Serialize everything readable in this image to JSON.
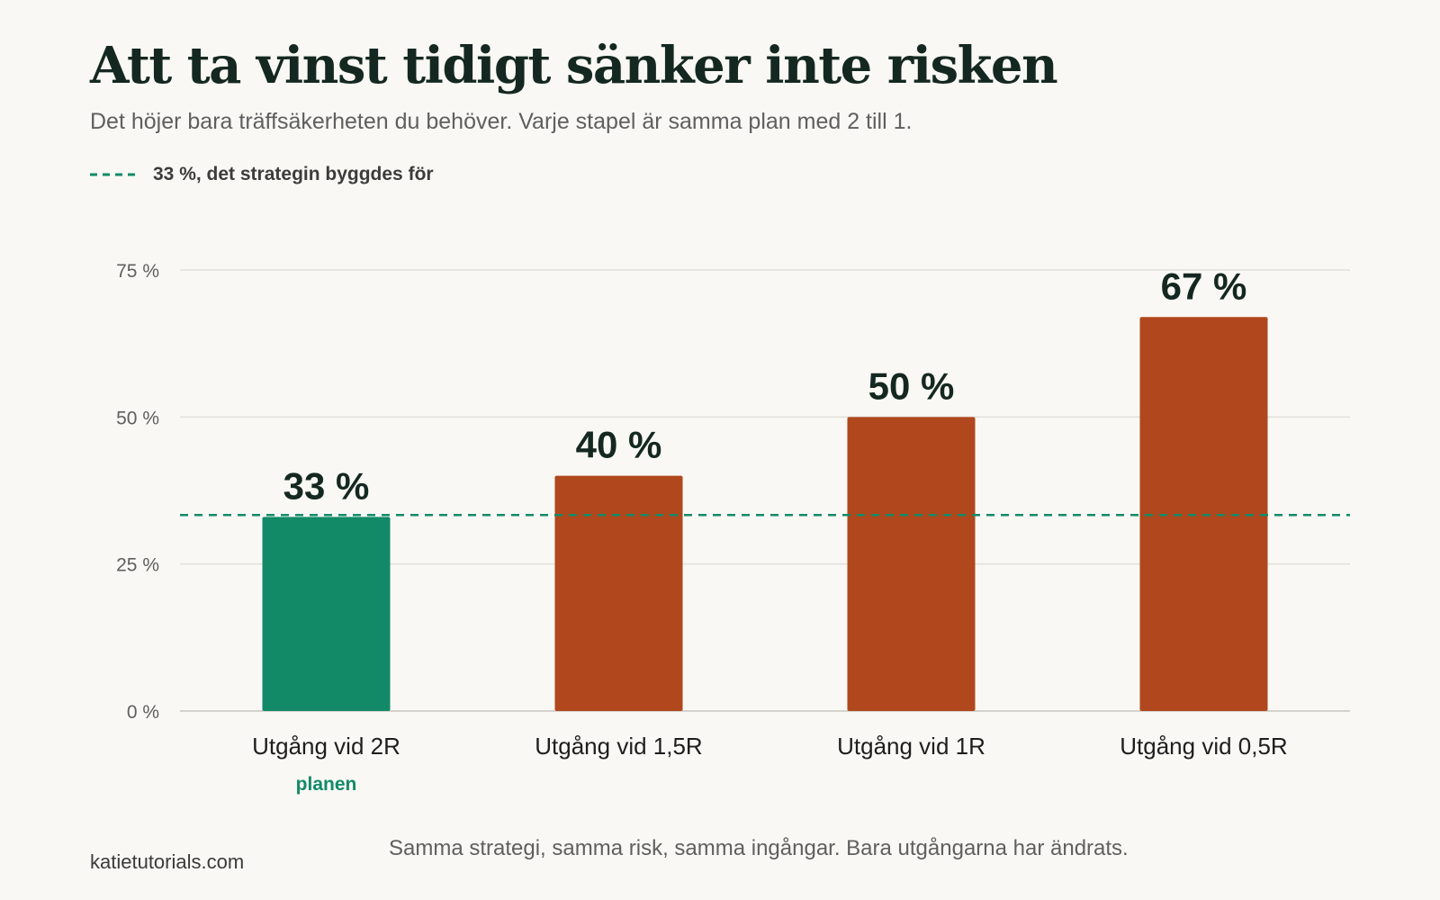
{
  "header": {
    "title": "Att ta vinst tidigt sänker inte risken",
    "subtitle": "Det höjer bara träffsäkerheten du behöver. Varje stapel är samma plan med 2 till 1."
  },
  "legend": {
    "reference_label": "33 %, det strategin byggdes för",
    "placement": "top-left"
  },
  "chart_data": {
    "type": "bar",
    "categories": [
      "Utgång vid 2R",
      "Utgång vid 1,5R",
      "Utgång vid 1R",
      "Utgång vid 0,5R"
    ],
    "values": [
      33,
      40,
      50,
      67
    ],
    "value_labels": [
      "33 %",
      "40 %",
      "50 %",
      "67 %"
    ],
    "category_notes": [
      "planen",
      "",
      "",
      ""
    ],
    "ylim": [
      0,
      75
    ],
    "yticks": [
      0,
      25,
      50,
      75
    ],
    "ytick_labels": [
      "0 %",
      "25 %",
      "50 %",
      "75 %"
    ],
    "reference_line": {
      "value": 33.33,
      "label": "33 %, det strategin byggdes för",
      "style": "dashed"
    },
    "grid": true,
    "xlabel": "",
    "ylabel": ""
  },
  "colors": {
    "plan": "#128a68",
    "other": "#b0471d",
    "reference": "#128a68",
    "grid": "#e2e0da",
    "axis": "#d4d2cc",
    "value_label": "#142821",
    "tick_label": "#5f5f5f",
    "category_label": "#1e1e1e"
  },
  "footer": {
    "source": "katietutorials.com",
    "note": "Samma strategi, samma risk, samma ingångar. Bara utgångarna har ändrats."
  }
}
